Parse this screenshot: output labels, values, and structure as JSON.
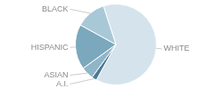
{
  "chart_data": {
    "type": "pie",
    "categories": [
      "WHITE",
      "A.I.",
      "ASIAN",
      "HISPANIC",
      "BLACK"
    ],
    "values": [
      63,
      2,
      5,
      18,
      12
    ],
    "colors": [
      "#d5e3ec",
      "#4a7a96",
      "#8fb5c8",
      "#7ba8bc",
      "#a8c8d8"
    ]
  }
}
